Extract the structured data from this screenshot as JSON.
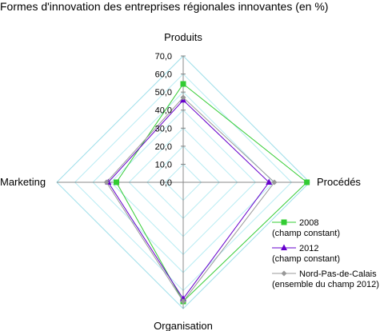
{
  "chart_data": {
    "type": "radar",
    "title": "Formes d'innovation des entreprises régionales innovantes (en %)",
    "axes": [
      "Produits",
      "Procédés",
      "Organisation",
      "Marketing"
    ],
    "r_ticks": [
      "0,0",
      "10,0",
      "20,0",
      "30,0",
      "40,0",
      "50,0",
      "60,0",
      "70,0"
    ],
    "rlim": [
      0,
      70
    ],
    "grid": true,
    "legend_position": "bottom-right",
    "series": [
      {
        "name": "2008 (champ constant)",
        "name_lines": [
          "2008",
          "(champ constant)"
        ],
        "marker": "square",
        "color": "#33cc33",
        "values": [
          54.5,
          68.5,
          66,
          37
        ]
      },
      {
        "name": "2012 (champ constant)",
        "name_lines": [
          "2012",
          "(champ constant)"
        ],
        "marker": "triangle",
        "color": "#6600cc",
        "values": [
          45.5,
          47.5,
          64.5,
          41.5
        ]
      },
      {
        "name": "Nord-Pas-de-Calais (ensemble du champ 2012)",
        "name_lines": [
          "Nord-Pas-de-Calais",
          "(ensemble du champ 2012)"
        ],
        "marker": "diamond",
        "color": "#999999",
        "values": [
          47,
          50.5,
          66,
          42.5
        ]
      }
    ]
  }
}
